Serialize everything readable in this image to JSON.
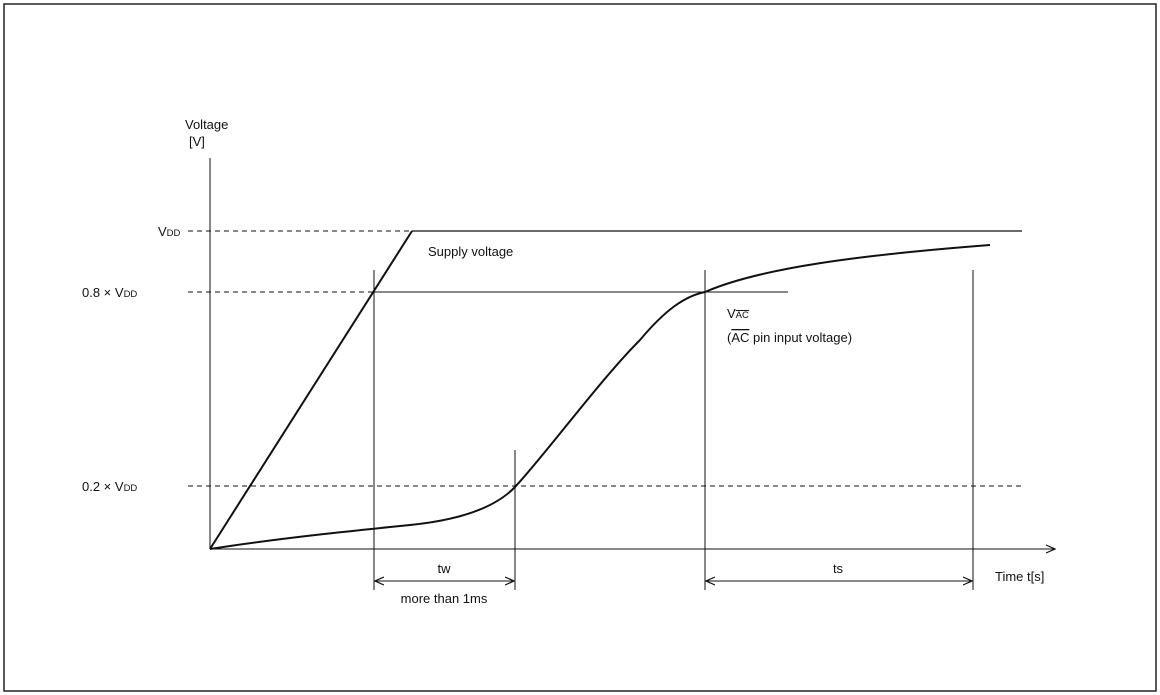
{
  "axes": {
    "y_label_line1": "Voltage",
    "y_label_line2": "[V]",
    "x_label": "Time t[s]"
  },
  "levels": {
    "vdd_main": "V",
    "vdd_sub": "DD",
    "level_080_prefix": "0.8 × V",
    "level_080_sub": "DD",
    "level_020_prefix": "0.2 × V",
    "level_020_sub": "DD"
  },
  "curves": {
    "supply_label": "Supply voltage",
    "vac_main": "V",
    "vac_sub": "AC",
    "vac_desc_open": "(",
    "vac_desc_ac": "AC",
    "vac_desc_rest": " pin input voltage)"
  },
  "intervals": {
    "tw_label": "tw",
    "tw_note": "more than 1ms",
    "ts_label": "ts"
  }
}
